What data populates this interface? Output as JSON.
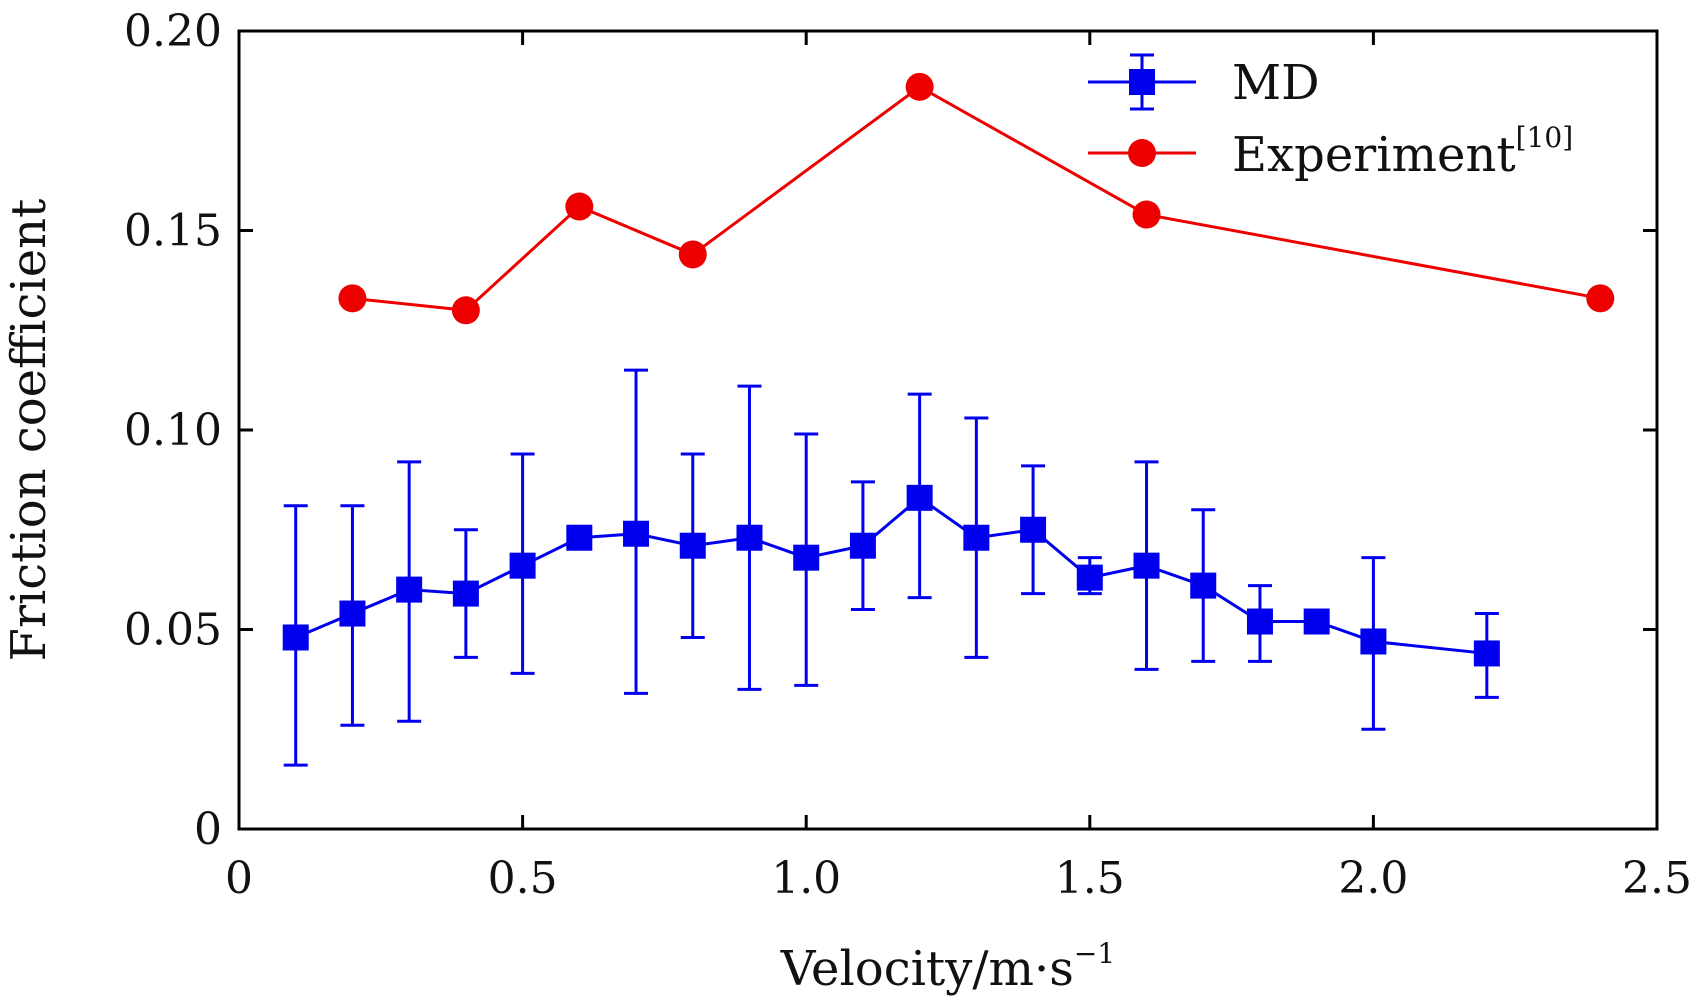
{
  "chart_data": {
    "type": "line",
    "xlabel_main": "Velocity/m·s",
    "xlabel_sup": "−1",
    "ylabel": "Friction coefficient",
    "xlim": [
      0,
      2.5
    ],
    "ylim": [
      0,
      0.2
    ],
    "x_ticks": [
      0,
      0.5,
      1.0,
      1.5,
      2.0,
      2.5
    ],
    "x_tick_labels": [
      "0",
      "0.5",
      "1.0",
      "1.5",
      "2.0",
      "2.5"
    ],
    "y_ticks": [
      0,
      0.05,
      0.1,
      0.15,
      0.2
    ],
    "y_tick_labels": [
      "0",
      "0.05",
      "0.10",
      "0.15",
      "0.20"
    ],
    "grid": false,
    "legend_position": "top-right",
    "series": [
      {
        "name": "MD",
        "name_sup": "",
        "color": "#0000ee",
        "marker": "square",
        "points": [
          {
            "x": 0.1,
            "y": 0.048,
            "lo": 0.016,
            "hi": 0.081
          },
          {
            "x": 0.2,
            "y": 0.054,
            "lo": 0.026,
            "hi": 0.081
          },
          {
            "x": 0.3,
            "y": 0.06,
            "lo": 0.027,
            "hi": 0.092
          },
          {
            "x": 0.4,
            "y": 0.059,
            "lo": 0.043,
            "hi": 0.075
          },
          {
            "x": 0.5,
            "y": 0.066,
            "lo": 0.039,
            "hi": 0.094
          },
          {
            "x": 0.6,
            "y": 0.073,
            "lo": 0.073,
            "hi": 0.073
          },
          {
            "x": 0.7,
            "y": 0.074,
            "lo": 0.034,
            "hi": 0.115
          },
          {
            "x": 0.8,
            "y": 0.071,
            "lo": 0.048,
            "hi": 0.094
          },
          {
            "x": 0.9,
            "y": 0.073,
            "lo": 0.035,
            "hi": 0.111
          },
          {
            "x": 1.0,
            "y": 0.068,
            "lo": 0.036,
            "hi": 0.099
          },
          {
            "x": 1.1,
            "y": 0.071,
            "lo": 0.055,
            "hi": 0.087
          },
          {
            "x": 1.2,
            "y": 0.083,
            "lo": 0.058,
            "hi": 0.109
          },
          {
            "x": 1.3,
            "y": 0.073,
            "lo": 0.043,
            "hi": 0.103
          },
          {
            "x": 1.4,
            "y": 0.075,
            "lo": 0.059,
            "hi": 0.091
          },
          {
            "x": 1.5,
            "y": 0.063,
            "lo": 0.059,
            "hi": 0.068
          },
          {
            "x": 1.6,
            "y": 0.066,
            "lo": 0.04,
            "hi": 0.092
          },
          {
            "x": 1.7,
            "y": 0.061,
            "lo": 0.042,
            "hi": 0.08
          },
          {
            "x": 1.8,
            "y": 0.052,
            "lo": 0.042,
            "hi": 0.061
          },
          {
            "x": 1.9,
            "y": 0.052,
            "lo": 0.052,
            "hi": 0.052
          },
          {
            "x": 2.0,
            "y": 0.047,
            "lo": 0.025,
            "hi": 0.068
          },
          {
            "x": 2.2,
            "y": 0.044,
            "lo": 0.033,
            "hi": 0.054
          }
        ]
      },
      {
        "name": "Experiment",
        "name_sup": "[10]",
        "color": "#ee0000",
        "marker": "circle",
        "points": [
          {
            "x": 0.2,
            "y": 0.133
          },
          {
            "x": 0.4,
            "y": 0.13
          },
          {
            "x": 0.6,
            "y": 0.156
          },
          {
            "x": 0.8,
            "y": 0.144
          },
          {
            "x": 1.2,
            "y": 0.186
          },
          {
            "x": 1.6,
            "y": 0.154
          },
          {
            "x": 2.4,
            "y": 0.133
          }
        ]
      }
    ]
  }
}
